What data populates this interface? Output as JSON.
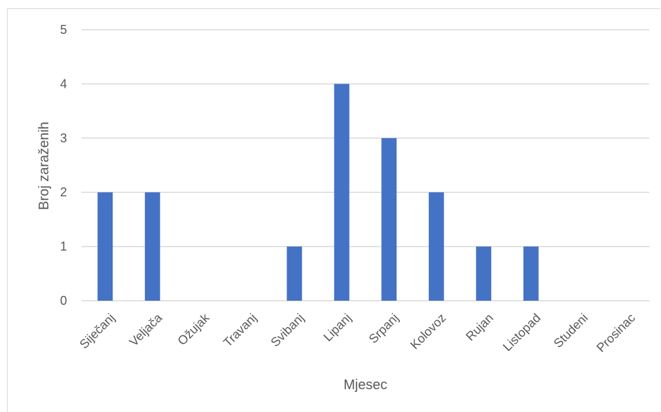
{
  "chart_data": {
    "type": "bar",
    "categories": [
      "Siječanj",
      "Veljača",
      "Ožujak",
      "Travanj",
      "Svibanj",
      "Lipanj",
      "Srpanj",
      "Kolovoz",
      "Rujan",
      "Listopad",
      "Studeni",
      "Prosinac"
    ],
    "values": [
      2,
      2,
      0,
      0,
      1,
      4,
      3,
      2,
      1,
      1,
      0,
      0
    ],
    "xlabel": "Mjesec",
    "ylabel": "Broj zaraženih",
    "ylim": [
      0,
      5
    ],
    "yticks": [
      "0",
      "1",
      "2",
      "3",
      "4",
      "5"
    ],
    "grid": true,
    "bar_color": "#4472c4",
    "grid_color": "#d9d9d9"
  }
}
